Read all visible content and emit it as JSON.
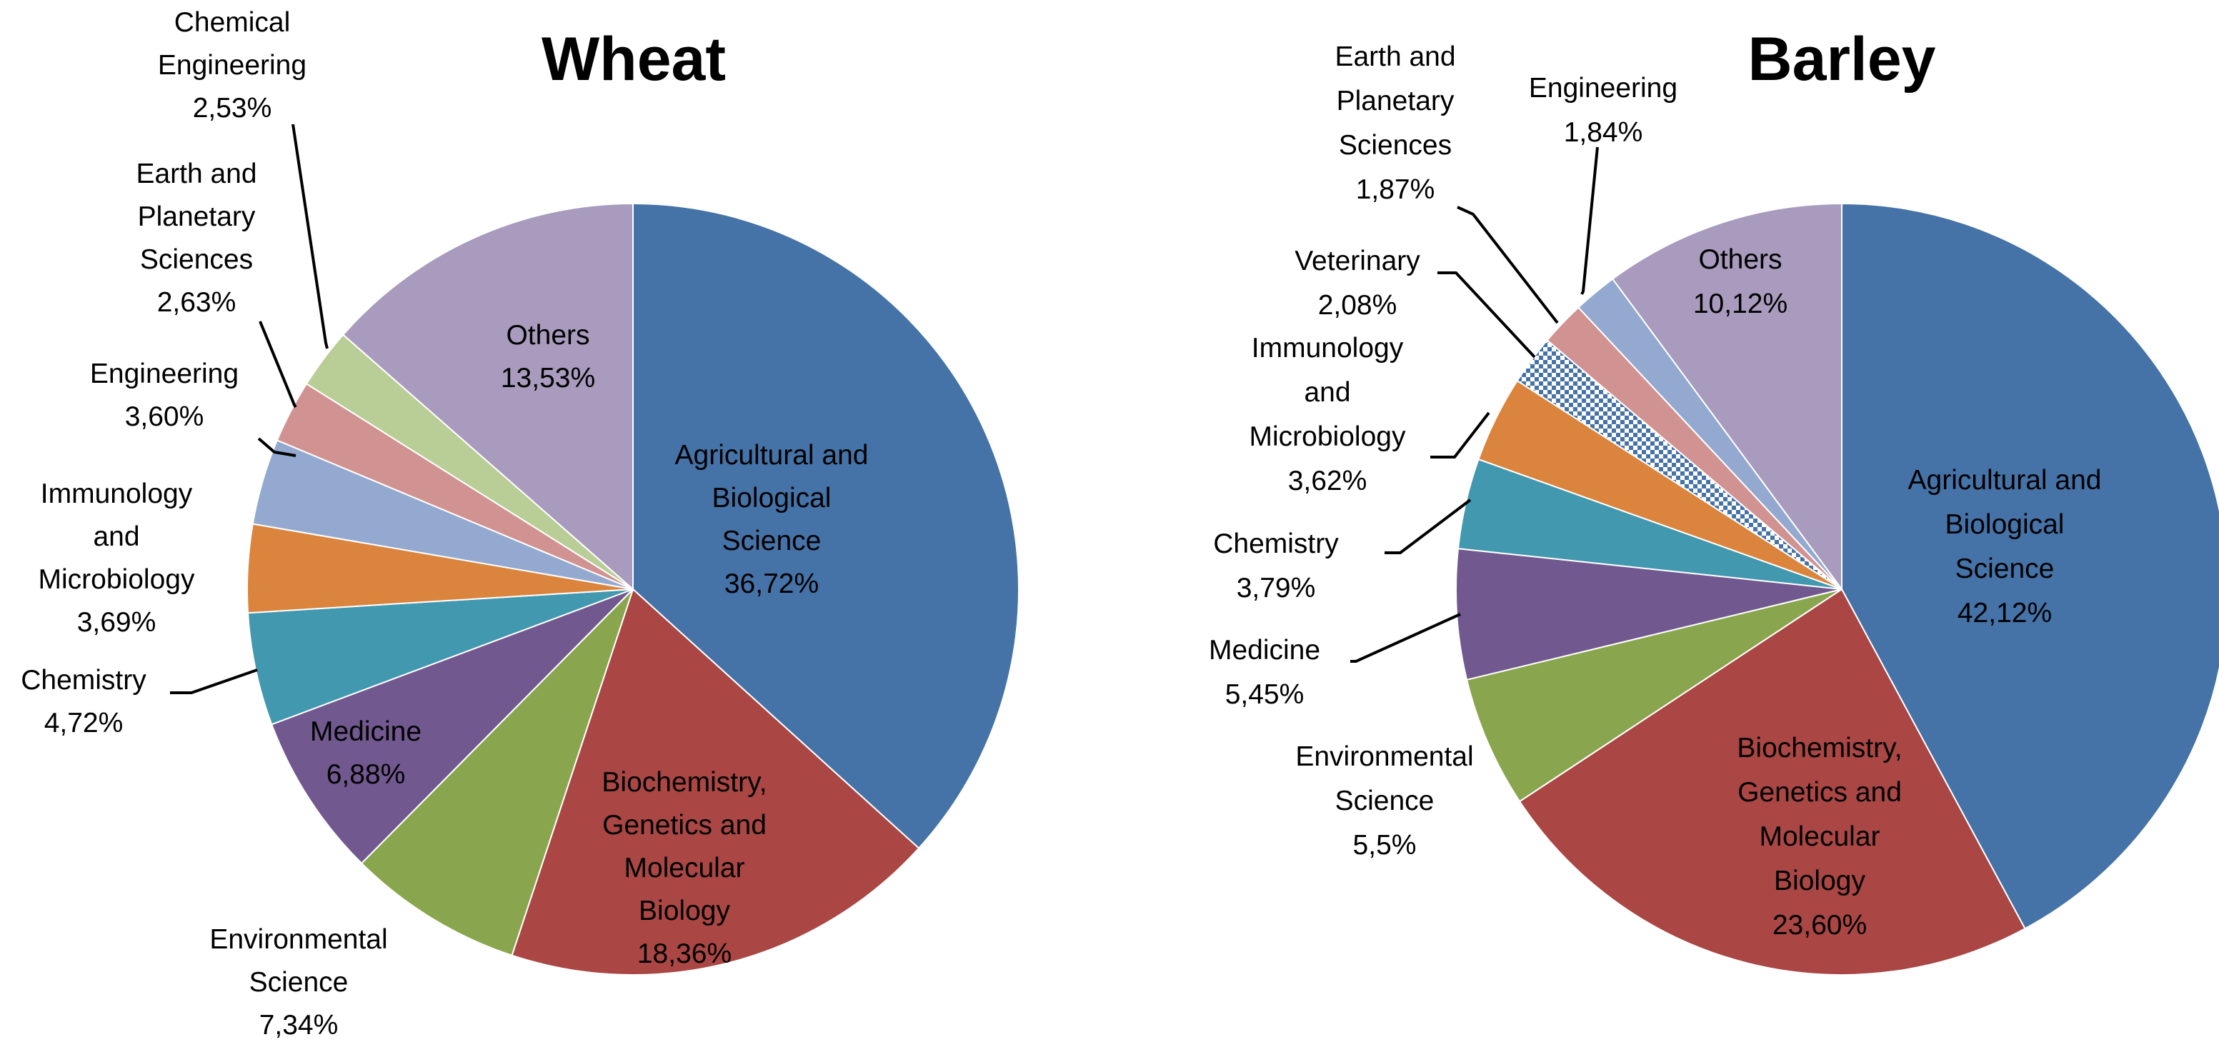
{
  "chart_data": [
    {
      "type": "pie",
      "title": "Wheat",
      "slices": [
        {
          "label": "Agricultural and Biological Science",
          "lines": [
            "Agricultural and",
            "Biological",
            "Science",
            "36,72%"
          ],
          "value": 36.72,
          "value_text": "36,72%",
          "color": "#4572A7"
        },
        {
          "label": "Biochemistry, Genetics and Molecular Biology",
          "lines": [
            "Biochemistry,",
            "Genetics and",
            "Molecular",
            "Biology",
            "18,36%"
          ],
          "value": 18.36,
          "value_text": "18,36%",
          "color": "#AA4643"
        },
        {
          "label": "Environmental Science",
          "lines": [
            "Environmental",
            "Science",
            "7,34%"
          ],
          "value": 7.34,
          "value_text": "7,34%",
          "color": "#89A54E"
        },
        {
          "label": "Medicine",
          "lines": [
            "Medicine",
            "6,88%"
          ],
          "value": 6.88,
          "value_text": "6,88%",
          "color": "#71588F"
        },
        {
          "label": "Chemistry",
          "lines": [
            "Chemistry",
            "4,72%"
          ],
          "value": 4.72,
          "value_text": "4,72%",
          "color": "#4198AF"
        },
        {
          "label": "Immunology and Microbiology",
          "lines": [
            "Immunology",
            "and",
            "Microbiology",
            "3,69%"
          ],
          "value": 3.69,
          "value_text": "3,69%",
          "color": "#DB843D"
        },
        {
          "label": "Engineering",
          "lines": [
            "Engineering",
            "3,60%"
          ],
          "value": 3.6,
          "value_text": "3,60%",
          "color": "#93A9CF"
        },
        {
          "label": "Earth and Planetary Sciences",
          "lines": [
            "Earth and",
            "Planetary",
            "Sciences",
            "2,63%"
          ],
          "value": 2.63,
          "value_text": "2,63%",
          "color": "#D19392"
        },
        {
          "label": "Chemical Engineering",
          "lines": [
            "Chemical",
            "Engineering",
            "2,53%"
          ],
          "value": 2.53,
          "value_text": "2,53%",
          "color": "#B9CD96"
        },
        {
          "label": "Others",
          "lines": [
            "Others",
            "13,53%"
          ],
          "value": 13.53,
          "value_text": "13,53%",
          "color": "#A99BBD"
        }
      ]
    },
    {
      "type": "pie",
      "title": "Barley",
      "slices": [
        {
          "label": "Agricultural and Biological Science",
          "lines": [
            "Agricultural and",
            "Biological",
            "Science",
            "42,12%"
          ],
          "value": 42.12,
          "value_text": "42,12%",
          "color": "#4572A7"
        },
        {
          "label": "Biochemistry, Genetics and Molecular Biology",
          "lines": [
            "Biochemistry,",
            "Genetics and",
            "Molecular",
            "Biology",
            "23,60%"
          ],
          "value": 23.6,
          "value_text": "23,60%",
          "color": "#AA4643"
        },
        {
          "label": "Environmental Science",
          "lines": [
            "Environmental",
            "Science",
            "5,5%"
          ],
          "value": 5.5,
          "value_text": "5,5%",
          "color": "#89A54E"
        },
        {
          "label": "Medicine",
          "lines": [
            "Medicine",
            "5,45%"
          ],
          "value": 5.45,
          "value_text": "5,45%",
          "color": "#71588F"
        },
        {
          "label": "Chemistry",
          "lines": [
            "Chemistry",
            "3,79%"
          ],
          "value": 3.79,
          "value_text": "3,79%",
          "color": "#4198AF"
        },
        {
          "label": "Immunology and Microbiology",
          "lines": [
            "Immunology",
            "and",
            "Microbiology",
            "3,62%"
          ],
          "value": 3.62,
          "value_text": "3,62%",
          "color": "#DB843D"
        },
        {
          "label": "Veterinary",
          "lines": [
            "Veterinary",
            "2,08%"
          ],
          "value": 2.08,
          "value_text": "2,08%",
          "color": "#4572A7",
          "pattern": "checker"
        },
        {
          "label": "Earth and Planetary Sciences",
          "lines": [
            "Earth and",
            "Planetary",
            "Sciences",
            "1,87%"
          ],
          "value": 1.87,
          "value_text": "1,87%",
          "color": "#D19392"
        },
        {
          "label": "Engineering",
          "lines": [
            "Engineering",
            "1,84%"
          ],
          "value": 1.84,
          "value_text": "1,84%",
          "color": "#93A9CF"
        },
        {
          "label": "Others",
          "lines": [
            "Others",
            "10,12%"
          ],
          "value": 10.12,
          "value_text": "10,12%",
          "color": "#A99BBD"
        }
      ]
    }
  ]
}
